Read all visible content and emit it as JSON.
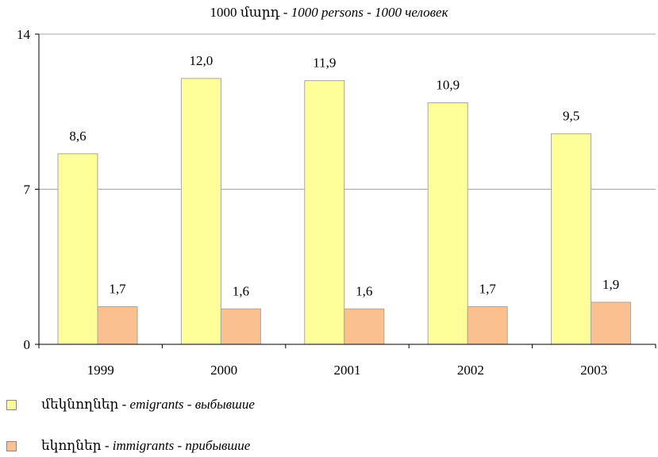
{
  "header": {
    "unit_arm": "1000 մարդ - ",
    "unit_en": "1000  persons",
    "sep": " - ",
    "unit_ru": "1000  человек"
  },
  "legend": {
    "items": [
      {
        "arm": "մեկնողներ - ",
        "en": "emigrants",
        "sep": " - ",
        "ru": "выбывшие",
        "color": "#ffff99"
      },
      {
        "arm": "եկողներ - ",
        "en": "immigrants",
        "sep": " - ",
        "ru": "прибывшие",
        "color": "#fac090"
      }
    ]
  },
  "chart_data": {
    "type": "bar",
    "categories": [
      "1999",
      "2000",
      "2001",
      "2002",
      "2003"
    ],
    "series": [
      {
        "values": [
          8.6,
          12.0,
          11.9,
          10.9,
          9.5
        ],
        "labels": [
          "8,6",
          "12,0",
          "11,9",
          "10,9",
          "9,5"
        ],
        "color": "#ffff99"
      },
      {
        "values": [
          1.7,
          1.6,
          1.6,
          1.7,
          1.9
        ],
        "labels": [
          "1,7",
          "1,6",
          "1,6",
          "1,7",
          "1,9"
        ],
        "color": "#fac090"
      }
    ],
    "yticks": [
      0,
      7,
      14
    ],
    "ylim": [
      0,
      14
    ],
    "grid": true,
    "legend": "bottom-left"
  }
}
